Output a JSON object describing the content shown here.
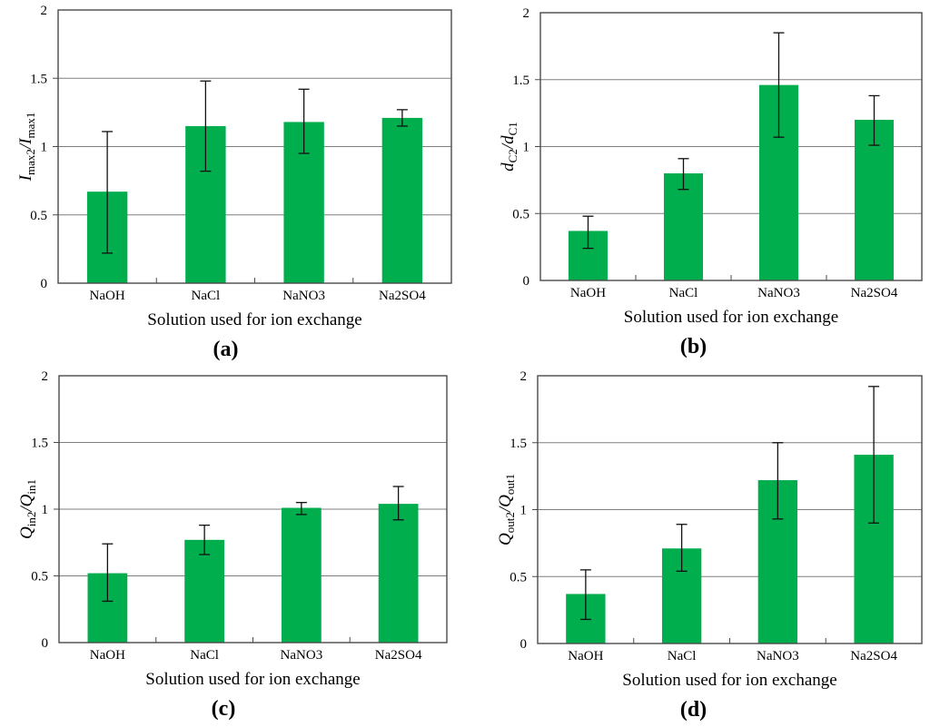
{
  "figure": {
    "background": "#ffffff",
    "bar_color": "#00AE4D",
    "frame_color": "#4a4a4a",
    "grid_color": "#7f7f7f",
    "error_bar_color": "#111111",
    "text_color": "#000000"
  },
  "chart_data": [
    {
      "id": "a",
      "type": "bar",
      "caption": "(a)",
      "xlabel": "Solution used for ion exchange",
      "ylabel": "Imax2/Imax1",
      "ylabel_parts": [
        {
          "t": "I",
          "s": "it"
        },
        {
          "t": "max2",
          "s": "sub"
        },
        {
          "t": "/",
          "s": "it"
        },
        {
          "t": "I",
          "s": "it"
        },
        {
          "t": "max1",
          "s": "sub"
        }
      ],
      "categories": [
        "NaOH",
        "NaCl",
        "NaNO3",
        "Na2SO4"
      ],
      "values": [
        0.67,
        1.15,
        1.18,
        1.21
      ],
      "error_low": [
        0.22,
        0.82,
        0.95,
        1.15
      ],
      "error_high": [
        1.11,
        1.48,
        1.42,
        1.27
      ],
      "ylim": [
        0,
        2
      ],
      "yticks": [
        0,
        0.5,
        1,
        1.5,
        2
      ],
      "ytick_labels": [
        "0",
        "0.5",
        "1",
        "1.5",
        "2"
      ],
      "grid": true,
      "legend": "none"
    },
    {
      "id": "b",
      "type": "bar",
      "caption": "(b)",
      "xlabel": "Solution used for ion exchange",
      "ylabel": "dC2/dC1",
      "ylabel_parts": [
        {
          "t": "d",
          "s": "it"
        },
        {
          "t": "C2",
          "s": "sub"
        },
        {
          "t": "/",
          "s": "it"
        },
        {
          "t": "d",
          "s": "it"
        },
        {
          "t": "C1",
          "s": "sub"
        }
      ],
      "categories": [
        "NaOH",
        "NaCl",
        "NaNO3",
        "Na2SO4"
      ],
      "values": [
        0.37,
        0.8,
        1.46,
        1.2
      ],
      "error_low": [
        0.24,
        0.68,
        1.07,
        1.01
      ],
      "error_high": [
        0.48,
        0.91,
        1.85,
        1.38
      ],
      "ylim": [
        0,
        2
      ],
      "yticks": [
        0,
        0.5,
        1,
        1.5,
        2
      ],
      "ytick_labels": [
        "0",
        "0.5",
        "1",
        "1.5",
        "2"
      ],
      "grid": true,
      "legend": "none"
    },
    {
      "id": "c",
      "type": "bar",
      "caption": "(c)",
      "xlabel": "Solution used for ion exchange",
      "ylabel": "Qin2/Qin1",
      "ylabel_parts": [
        {
          "t": "Q",
          "s": "it"
        },
        {
          "t": "in2",
          "s": "sub"
        },
        {
          "t": "/",
          "s": "it"
        },
        {
          "t": "Q",
          "s": "it"
        },
        {
          "t": "in1",
          "s": "sub"
        }
      ],
      "categories": [
        "NaOH",
        "NaCl",
        "NaNO3",
        "Na2SO4"
      ],
      "values": [
        0.52,
        0.77,
        1.01,
        1.04
      ],
      "error_low": [
        0.31,
        0.66,
        0.96,
        0.92
      ],
      "error_high": [
        0.74,
        0.88,
        1.05,
        1.17
      ],
      "ylim": [
        0,
        2
      ],
      "yticks": [
        0,
        0.5,
        1,
        1.5,
        2
      ],
      "ytick_labels": [
        "0",
        "0.5",
        "1",
        "1.5",
        "2"
      ],
      "grid": true,
      "legend": "none"
    },
    {
      "id": "d",
      "type": "bar",
      "caption": "(d)",
      "xlabel": "Solution used for ion exchange",
      "ylabel": "Qout2/Qout1",
      "ylabel_parts": [
        {
          "t": "Q",
          "s": "it"
        },
        {
          "t": "out2",
          "s": "sub"
        },
        {
          "t": "/",
          "s": "it"
        },
        {
          "t": "Q",
          "s": "it"
        },
        {
          "t": "out1",
          "s": "sub"
        }
      ],
      "categories": [
        "NaOH",
        "NaCl",
        "NaNO3",
        "Na2SO4"
      ],
      "values": [
        0.37,
        0.71,
        1.22,
        1.41
      ],
      "error_low": [
        0.18,
        0.54,
        0.93,
        0.9
      ],
      "error_high": [
        0.55,
        0.89,
        1.5,
        1.92
      ],
      "ylim": [
        0,
        2
      ],
      "yticks": [
        0,
        0.5,
        1,
        1.5,
        2
      ],
      "ytick_labels": [
        "0",
        "0.5",
        "1",
        "1.5",
        "2"
      ],
      "grid": true,
      "legend": "none"
    }
  ]
}
